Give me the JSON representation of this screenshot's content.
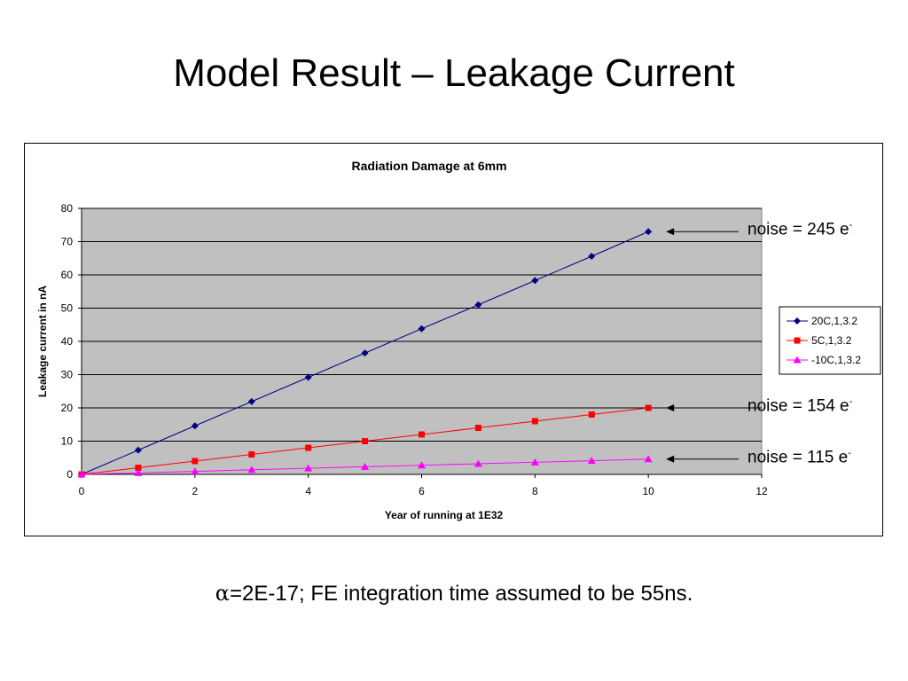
{
  "slide": {
    "title": "Model Result – Leakage Current",
    "footer_alpha": "α",
    "footer_text": "=2E-17; FE integration time assumed to be 55ns."
  },
  "annotations": [
    {
      "label": "noise = 245 e",
      "sup": "-",
      "y": 73
    },
    {
      "label": "noise = 154 e",
      "sup": "-",
      "y": 20
    },
    {
      "label": "noise = 115 e",
      "sup": "-",
      "y": 4.6
    }
  ],
  "colors": {
    "plot_bg": "#c0c0c0",
    "grid": "#000000"
  },
  "chart_data": {
    "type": "line",
    "title": "Radiation Damage at 6mm",
    "xlabel": "Year of running at 1E32",
    "ylabel": "Leakage current in nA",
    "xlim": [
      0,
      12
    ],
    "ylim": [
      0,
      80
    ],
    "xticks": [
      0,
      2,
      4,
      6,
      8,
      10,
      12
    ],
    "yticks": [
      0,
      10,
      20,
      30,
      40,
      50,
      60,
      70,
      80
    ],
    "grid": "horizontal",
    "legend_position": "right",
    "x": [
      0,
      1,
      2,
      3,
      4,
      5,
      6,
      7,
      8,
      9,
      10
    ],
    "series": [
      {
        "name": "20C,1,3.2",
        "color": "#000080",
        "marker": "diamond",
        "values": [
          0,
          7.3,
          14.6,
          21.9,
          29.2,
          36.5,
          43.8,
          51.0,
          58.3,
          65.6,
          73.0
        ]
      },
      {
        "name": "5C,1,3.2",
        "color": "#ff0000",
        "marker": "square",
        "values": [
          0,
          2.0,
          4.0,
          6.0,
          8.0,
          10.0,
          12.0,
          14.0,
          16.0,
          18.0,
          20.0
        ]
      },
      {
        "name": "-10C,1,3.2",
        "color": "#ff00ff",
        "marker": "triangle",
        "values": [
          0,
          0.45,
          0.9,
          1.4,
          1.85,
          2.3,
          2.75,
          3.2,
          3.65,
          4.1,
          4.6
        ]
      }
    ]
  }
}
